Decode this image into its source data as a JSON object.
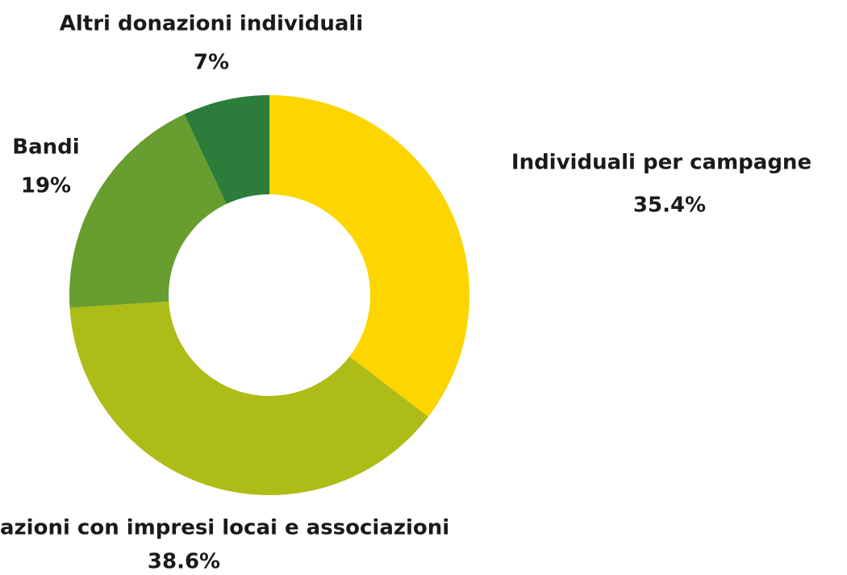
{
  "chart_data": {
    "type": "donut",
    "categories": [
      "Individuali per campagne",
      "azioni con impresi locai e associazioni",
      "Bandi",
      "Altri donazioni individuali"
    ],
    "values": [
      35.4,
      38.6,
      19,
      7
    ],
    "value_labels": [
      "35.4%",
      "38.6%",
      "19%",
      "7%"
    ],
    "colors": [
      "#fdd500",
      "#adbc17",
      "#679e2f",
      "#2c7c3b"
    ]
  }
}
